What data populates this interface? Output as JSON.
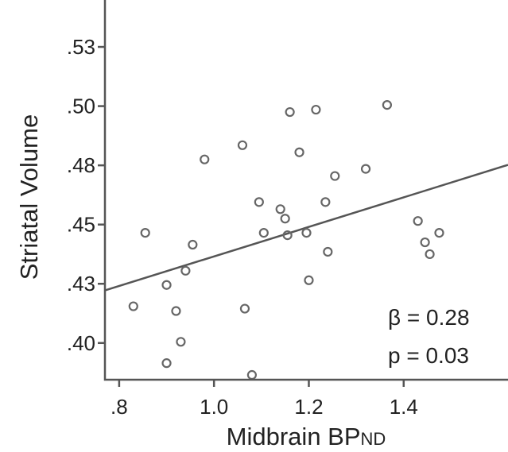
{
  "chart_data": {
    "type": "scatter",
    "xlabel_main": "Midbrain BP",
    "xlabel_sub": "ND",
    "ylabel": "Striatal Volume",
    "xlim": [
      0.77,
      1.62
    ],
    "ylim": [
      0.3845,
      0.5448
    ],
    "x_ticks": [
      {
        "value": 0.8,
        "label": ".8"
      },
      {
        "value": 1.0,
        "label": "1.0"
      },
      {
        "value": 1.2,
        "label": "1.2"
      },
      {
        "value": 1.4,
        "label": "1.4"
      }
    ],
    "y_ticks": [
      {
        "value": 0.4,
        "label": ".40"
      },
      {
        "value": 0.425,
        "label": ".43"
      },
      {
        "value": 0.45,
        "label": ".45"
      },
      {
        "value": 0.475,
        "label": ".48"
      },
      {
        "value": 0.5,
        "label": ".50"
      },
      {
        "value": 0.525,
        "label": ".53"
      }
    ],
    "points": [
      {
        "x": 0.83,
        "y": 0.4155
      },
      {
        "x": 0.855,
        "y": 0.4465
      },
      {
        "x": 0.9,
        "y": 0.4245
      },
      {
        "x": 0.9,
        "y": 0.3915
      },
      {
        "x": 0.92,
        "y": 0.4135
      },
      {
        "x": 0.93,
        "y": 0.4005
      },
      {
        "x": 0.94,
        "y": 0.4305
      },
      {
        "x": 0.955,
        "y": 0.4415
      },
      {
        "x": 0.98,
        "y": 0.4775
      },
      {
        "x": 1.06,
        "y": 0.4835
      },
      {
        "x": 1.065,
        "y": 0.4145
      },
      {
        "x": 1.08,
        "y": 0.3865
      },
      {
        "x": 1.095,
        "y": 0.4595
      },
      {
        "x": 1.105,
        "y": 0.4465
      },
      {
        "x": 1.14,
        "y": 0.4565
      },
      {
        "x": 1.15,
        "y": 0.4525
      },
      {
        "x": 1.155,
        "y": 0.4455
      },
      {
        "x": 1.16,
        "y": 0.4975
      },
      {
        "x": 1.18,
        "y": 0.4805
      },
      {
        "x": 1.195,
        "y": 0.4465
      },
      {
        "x": 1.2,
        "y": 0.4265
      },
      {
        "x": 1.215,
        "y": 0.4985
      },
      {
        "x": 1.235,
        "y": 0.4595
      },
      {
        "x": 1.24,
        "y": 0.4385
      },
      {
        "x": 1.255,
        "y": 0.4705
      },
      {
        "x": 1.32,
        "y": 0.4735
      },
      {
        "x": 1.365,
        "y": 0.5005
      },
      {
        "x": 1.43,
        "y": 0.4515
      },
      {
        "x": 1.445,
        "y": 0.4425
      },
      {
        "x": 1.455,
        "y": 0.4375
      },
      {
        "x": 1.475,
        "y": 0.4465
      }
    ],
    "fit_line": {
      "x": [
        0.77,
        1.62
      ],
      "y": [
        0.4222,
        0.4752
      ]
    },
    "annotations": [
      "β = 0.28",
      "p = 0.03"
    ]
  }
}
